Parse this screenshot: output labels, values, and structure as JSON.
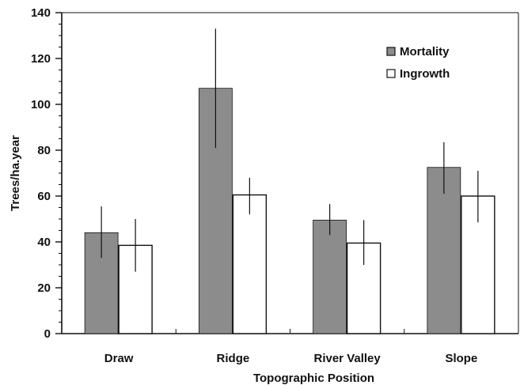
{
  "chart_data": {
    "type": "bar",
    "title": "",
    "xlabel": "Topographic Position",
    "ylabel": "Trees/ha.year",
    "ylim": [
      0,
      140
    ],
    "yticks": [
      0,
      20,
      40,
      60,
      80,
      100,
      120,
      140
    ],
    "categories": [
      "Draw",
      "Ridge",
      "River Valley",
      "Slope"
    ],
    "series": [
      {
        "name": "Mortality",
        "color": "#8c8c8c",
        "values": [
          44,
          107,
          49.5,
          72.5
        ],
        "error_low": [
          33,
          81,
          43,
          61
        ],
        "error_high": [
          55.5,
          133,
          56.5,
          83.5
        ]
      },
      {
        "name": "Ingrowth",
        "color": "#ffffff",
        "values": [
          38.5,
          60.5,
          39.5,
          60
        ],
        "error_low": [
          27,
          52,
          30,
          48.5
        ],
        "error_high": [
          50,
          68,
          49.5,
          71
        ]
      }
    ],
    "legend": "top-right",
    "grid": false
  }
}
